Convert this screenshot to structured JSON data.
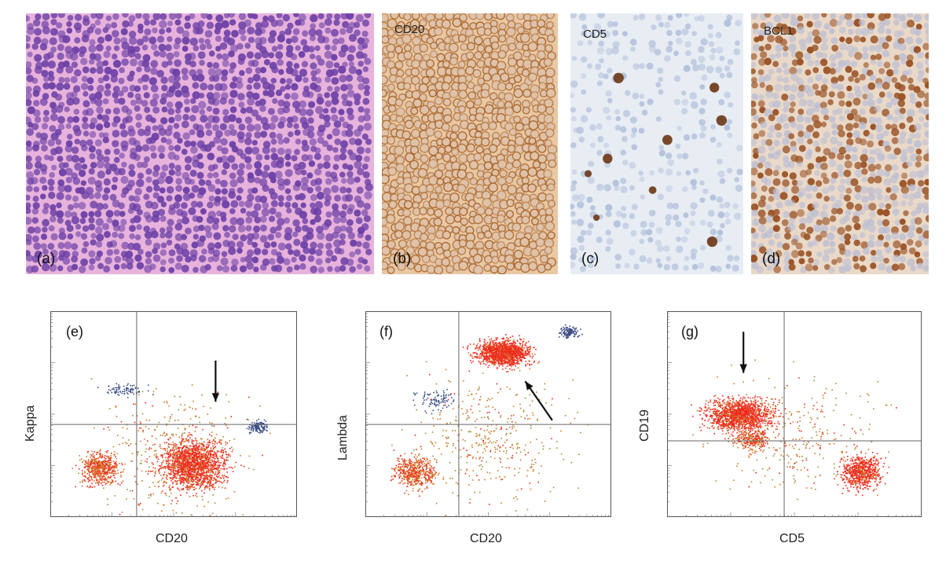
{
  "micrographs": [
    {
      "label": "(a)",
      "stain": "",
      "theme": "he"
    },
    {
      "label": "(b)",
      "stain": "CD20",
      "theme": "cd20"
    },
    {
      "label": "(c)",
      "stain": "CD5",
      "theme": "cd5"
    },
    {
      "label": "(d)",
      "stain": "BCL1",
      "theme": "bcl1"
    }
  ],
  "flow_plots": [
    {
      "label": "(e)",
      "xlabel": "CD20",
      "ylabel": "Kappa"
    },
    {
      "label": "(f)",
      "xlabel": "CD20",
      "ylabel": "Lambda"
    },
    {
      "label": "(g)",
      "xlabel": "CD5",
      "ylabel": "CD19"
    }
  ],
  "colors": {
    "he_bg": "#e7b3dc",
    "he_nucleus": "#6a3fa5",
    "cd20_bg": "#e9c8a4",
    "cd20_membrane": "#a9652a",
    "cd5_bg": "#e8edf4",
    "cd5_cell": "#a7b8d6",
    "cd5_pos": "#6b3515",
    "bcl1_bg": "#ead9c8",
    "bcl1_pos": "#9a5326",
    "bcl1_neg": "#b8bcd4",
    "dot_red": "#f0281e",
    "dot_orange": "#cf7a25",
    "dot_blue": "#3b4c86",
    "arrow": "#111111"
  }
}
